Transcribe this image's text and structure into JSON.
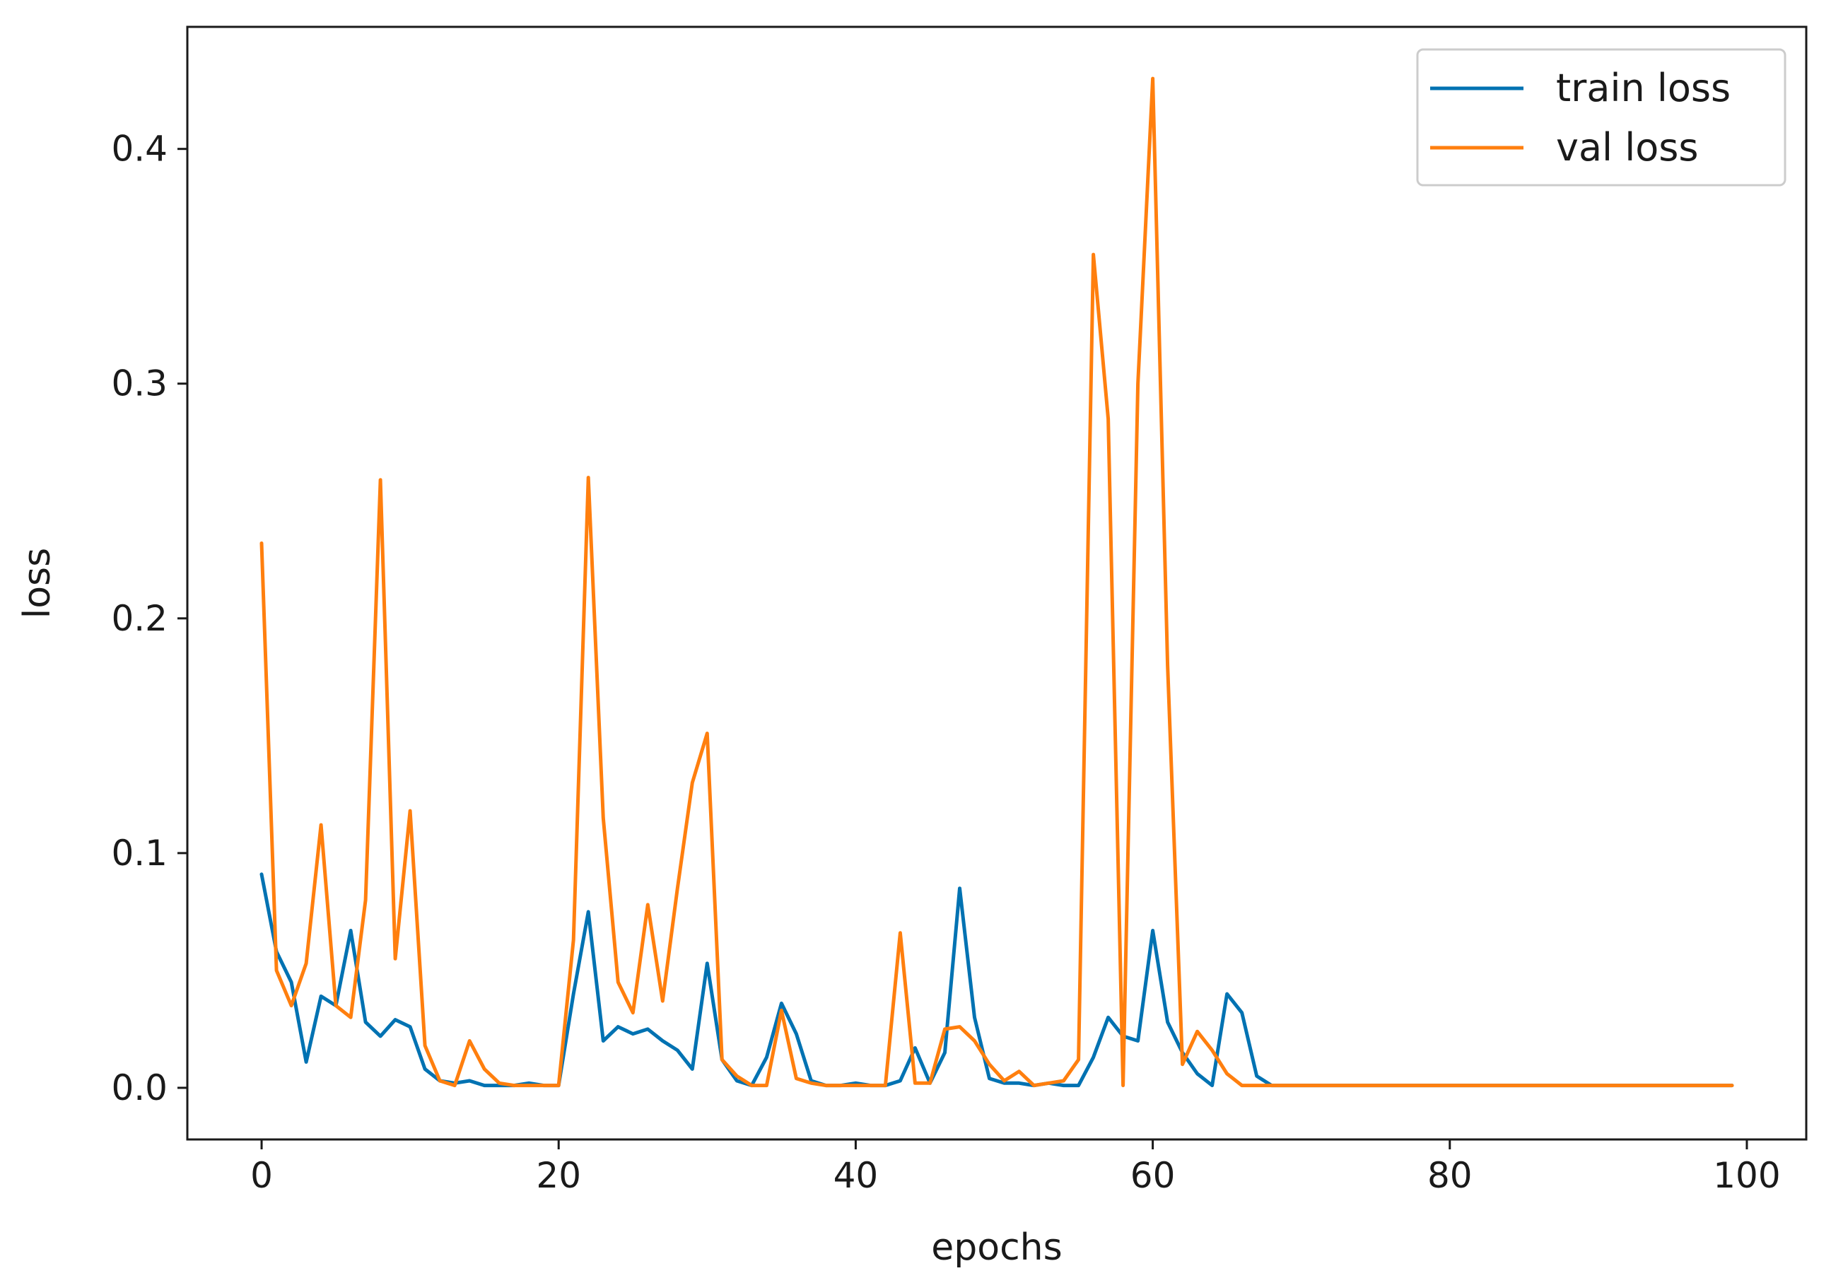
{
  "chart_data": {
    "type": "line",
    "title": "",
    "xlabel": "epochs",
    "ylabel": "loss",
    "xlim": [
      -5,
      104
    ],
    "ylim": [
      -0.022,
      0.452
    ],
    "xticks": [
      0,
      20,
      40,
      60,
      80,
      100
    ],
    "xtick_labels": [
      "0",
      "20",
      "40",
      "60",
      "80",
      "100"
    ],
    "yticks": [
      0.0,
      0.1,
      0.2,
      0.3,
      0.4
    ],
    "ytick_labels": [
      "0.0",
      "0.1",
      "0.2",
      "0.3",
      "0.4"
    ],
    "grid": false,
    "legend_position": "top-right",
    "x": [
      0,
      1,
      2,
      3,
      4,
      5,
      6,
      7,
      8,
      9,
      10,
      11,
      12,
      13,
      14,
      15,
      16,
      17,
      18,
      19,
      20,
      21,
      22,
      23,
      24,
      25,
      26,
      27,
      28,
      29,
      30,
      31,
      32,
      33,
      34,
      35,
      36,
      37,
      38,
      39,
      40,
      41,
      42,
      43,
      44,
      45,
      46,
      47,
      48,
      49,
      50,
      51,
      52,
      53,
      54,
      55,
      56,
      57,
      58,
      59,
      60,
      61,
      62,
      63,
      64,
      65,
      66,
      67,
      68,
      69,
      70,
      71,
      72,
      73,
      74,
      75,
      76,
      77,
      78,
      79,
      80,
      81,
      82,
      83,
      84,
      85,
      86,
      87,
      88,
      89,
      90,
      91,
      92,
      93,
      94,
      95,
      96,
      97,
      98,
      99
    ],
    "series": [
      {
        "name": "train loss",
        "color": "#0072b2",
        "values": [
          0.091,
          0.058,
          0.045,
          0.011,
          0.039,
          0.035,
          0.067,
          0.028,
          0.022,
          0.029,
          0.026,
          0.008,
          0.003,
          0.002,
          0.003,
          0.001,
          0.001,
          0.001,
          0.002,
          0.001,
          0.001,
          0.04,
          0.075,
          0.02,
          0.026,
          0.023,
          0.025,
          0.02,
          0.016,
          0.008,
          0.053,
          0.012,
          0.003,
          0.001,
          0.013,
          0.036,
          0.023,
          0.003,
          0.001,
          0.001,
          0.002,
          0.001,
          0.001,
          0.003,
          0.017,
          0.002,
          0.015,
          0.085,
          0.03,
          0.004,
          0.002,
          0.002,
          0.001,
          0.002,
          0.001,
          0.001,
          0.013,
          0.03,
          0.022,
          0.02,
          0.067,
          0.028,
          0.015,
          0.006,
          0.001,
          0.04,
          0.032,
          0.005,
          0.001,
          0.001,
          0.001,
          0.001,
          0.001,
          0.001,
          0.001,
          0.001,
          0.001,
          0.001,
          0.001,
          0.001,
          0.001,
          0.001,
          0.001,
          0.001,
          0.001,
          0.001,
          0.001,
          0.001,
          0.001,
          0.001,
          0.001,
          0.001,
          0.001,
          0.001,
          0.001,
          0.001,
          0.001,
          0.001,
          0.001,
          0.001
        ]
      },
      {
        "name": "val loss",
        "color": "#ff7f0e",
        "values": [
          0.232,
          0.05,
          0.035,
          0.053,
          0.112,
          0.035,
          0.03,
          0.08,
          0.259,
          0.055,
          0.118,
          0.018,
          0.003,
          0.001,
          0.02,
          0.008,
          0.002,
          0.001,
          0.001,
          0.001,
          0.001,
          0.063,
          0.26,
          0.115,
          0.045,
          0.032,
          0.078,
          0.037,
          0.085,
          0.13,
          0.151,
          0.012,
          0.005,
          0.001,
          0.001,
          0.033,
          0.004,
          0.002,
          0.001,
          0.001,
          0.001,
          0.001,
          0.001,
          0.066,
          0.002,
          0.002,
          0.025,
          0.026,
          0.02,
          0.01,
          0.003,
          0.007,
          0.001,
          0.002,
          0.003,
          0.012,
          0.355,
          0.285,
          0.001,
          0.3,
          0.43,
          0.18,
          0.01,
          0.024,
          0.016,
          0.006,
          0.001,
          0.001,
          0.001,
          0.001,
          0.001,
          0.001,
          0.001,
          0.001,
          0.001,
          0.001,
          0.001,
          0.001,
          0.001,
          0.001,
          0.001,
          0.001,
          0.001,
          0.001,
          0.001,
          0.001,
          0.001,
          0.001,
          0.001,
          0.001,
          0.001,
          0.001,
          0.001,
          0.001,
          0.001,
          0.001,
          0.001,
          0.001,
          0.001,
          0.001
        ]
      }
    ]
  }
}
